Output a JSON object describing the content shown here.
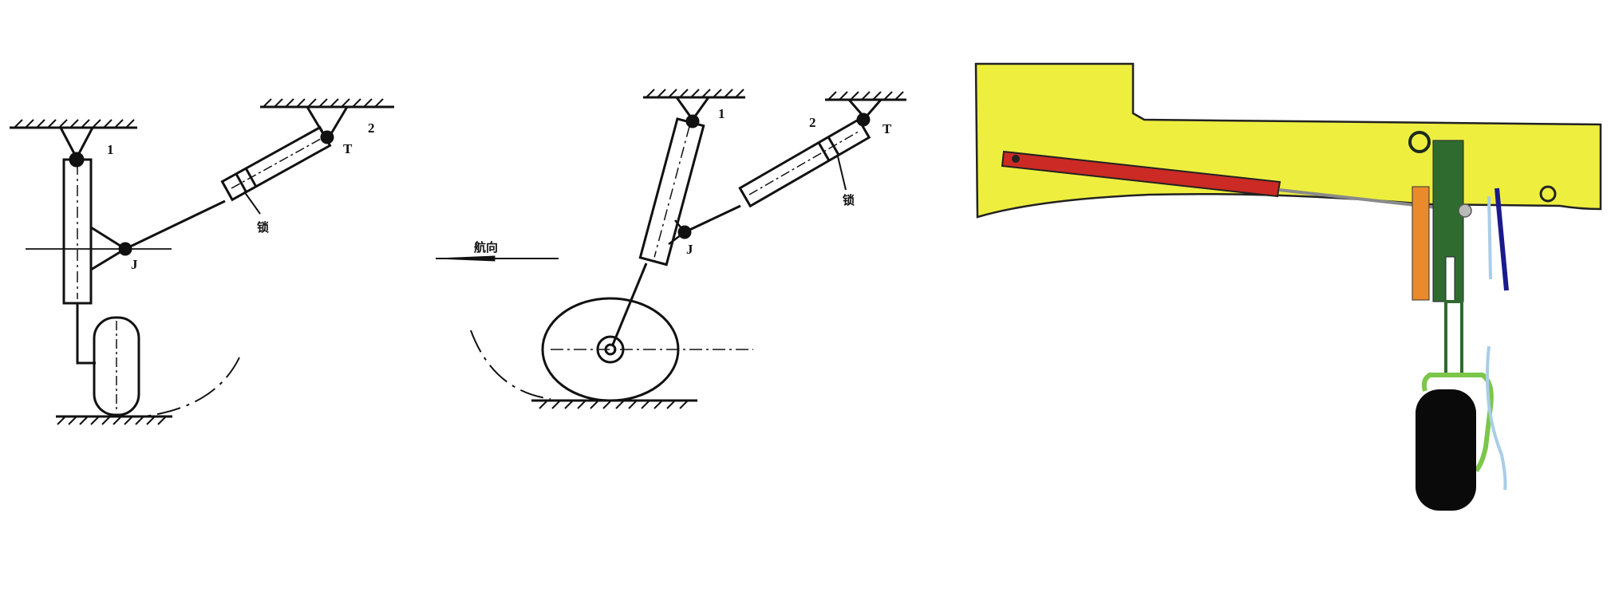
{
  "diagram_left": {
    "labels": {
      "strut_pivot": "1",
      "actuator_pivot": "2",
      "top_joint": "T",
      "joint": "J",
      "lock": "锁"
    }
  },
  "diagram_middle": {
    "labels": {
      "strut_pivot": "1",
      "actuator_pivot": "2",
      "top_joint": "T",
      "joint": "J",
      "lock": "锁",
      "heading": "航向"
    }
  },
  "diagram_right": {
    "colors": {
      "fuselage": "#eeee3f",
      "actuator": "#cc2a24",
      "strut": "#2f6b2e",
      "bracket": "#ea8a2b",
      "door": "#1b1a8c",
      "wheel": "#0a0a0a",
      "fork": "#7cc64a",
      "hydraulic_line": "#a8cde8"
    }
  }
}
